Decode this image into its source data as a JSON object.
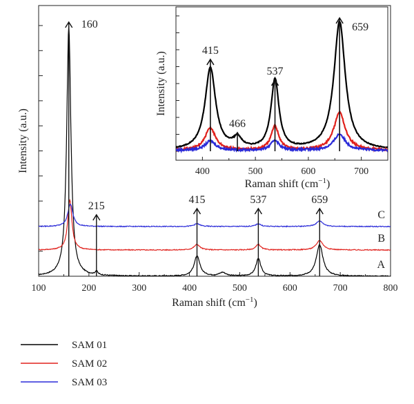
{
  "chart_data": [
    {
      "type": "line",
      "xlabel": "Raman shift (cm",
      "xlabel_sup": "−1",
      "xlabel_close": ")",
      "ylabel": "Intensity (a.u.)",
      "xlim": [
        100,
        800
      ],
      "xticks": [
        100,
        200,
        300,
        400,
        500,
        600,
        700,
        800
      ],
      "y_tick_labels": false,
      "legend_position": "bottom-left",
      "series": [
        {
          "name": "SAM 01",
          "color": "#000000",
          "stack_label": "A",
          "offset": 0,
          "baseline": 0,
          "peaks": [
            [
              160,
              100,
              5
            ],
            [
              215,
              1.5,
              3
            ],
            [
              415,
              8,
              7
            ],
            [
              466,
              1.4,
              8
            ],
            [
              537,
              7,
              6
            ],
            [
              659,
              12.5,
              8
            ]
          ]
        },
        {
          "name": "SAM 02",
          "color": "#e0201b",
          "stack_label": "B",
          "offset": 1,
          "baseline": 0,
          "peaks": [
            [
              162,
              20,
              5
            ],
            [
              415,
              2.2,
              7
            ],
            [
              537,
              2.2,
              6
            ],
            [
              659,
              3.8,
              8
            ]
          ]
        },
        {
          "name": "SAM 03",
          "color": "#2a2ad8",
          "stack_label": "C",
          "offset": 2,
          "baseline": 0,
          "peaks": [
            [
              163,
              9,
              6
            ],
            [
              415,
              1.1,
              7
            ],
            [
              537,
              1.1,
              6
            ],
            [
              659,
              2.2,
              8
            ]
          ]
        }
      ],
      "peak_annotations": [
        "160",
        "215",
        "415",
        "537",
        "659"
      ],
      "peak_positions": [
        160,
        215,
        415,
        537,
        659
      ]
    },
    {
      "type": "line",
      "role": "inset",
      "xlabel": "Raman shift (cm",
      "xlabel_sup": "−1",
      "xlabel_close": ")",
      "ylabel": "Intensity (a.u.)",
      "xlim": [
        350,
        750
      ],
      "xticks": [
        400,
        500,
        600,
        700
      ],
      "y_tick_labels": false,
      "series": [
        {
          "name": "SAM 01",
          "color": "#000000",
          "baseline": 0.5,
          "peaks": [
            [
              415,
              48,
              12
            ],
            [
              466,
              6,
              10
            ],
            [
              537,
              41,
              9
            ],
            [
              659,
              75,
              13
            ]
          ]
        },
        {
          "name": "SAM 02",
          "color": "#e0201b",
          "baseline": 0.5,
          "peaks": [
            [
              415,
              13,
              12
            ],
            [
              537,
              14,
              9
            ],
            [
              659,
              22,
              13
            ]
          ]
        },
        {
          "name": "SAM 03",
          "color": "#2a2ad8",
          "baseline": 0.5,
          "peaks": [
            [
              415,
              5.5,
              12
            ],
            [
              537,
              6,
              9
            ],
            [
              659,
              9.5,
              13
            ]
          ]
        }
      ],
      "peak_annotations": [
        "415",
        "466",
        "537",
        "659"
      ],
      "peak_positions": [
        415,
        466,
        537,
        659
      ]
    }
  ]
}
